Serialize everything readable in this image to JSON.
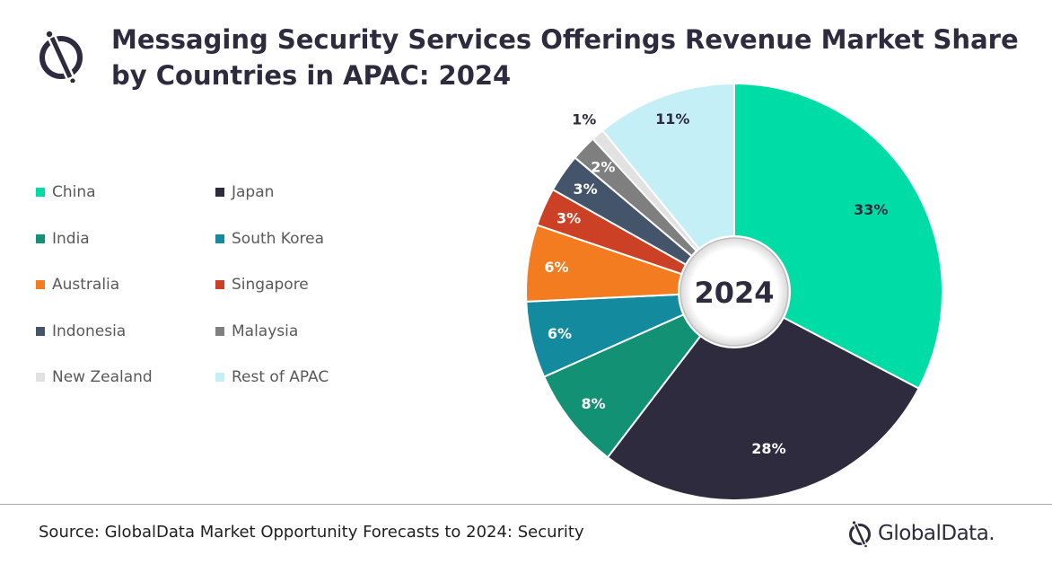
{
  "header": {
    "title": "Messaging Security Services Offerings Revenue Market Share by Countries in APAC: 2024"
  },
  "chart_data": {
    "type": "pie",
    "title": "Messaging Security Services Offerings Revenue Market Share by Countries in APAC: 2024",
    "center_label": "2024",
    "legend_position": "left",
    "slices": [
      {
        "name": "China",
        "value": 33,
        "label": "33%",
        "color": "#00dca5"
      },
      {
        "name": "Japan",
        "value": 28,
        "label": "28%",
        "color": "#2d2b3d"
      },
      {
        "name": "India",
        "value": 8,
        "label": "8%",
        "color": "#139175"
      },
      {
        "name": "South Korea",
        "value": 6,
        "label": "6%",
        "color": "#138a9e"
      },
      {
        "name": "Australia",
        "value": 6,
        "label": "6%",
        "color": "#f37c20"
      },
      {
        "name": "Singapore",
        "value": 3,
        "label": "3%",
        "color": "#cc4125"
      },
      {
        "name": "Indonesia",
        "value": 3,
        "label": "3%",
        "color": "#44546a"
      },
      {
        "name": "Malaysia",
        "value": 2,
        "label": "2%",
        "color": "#7f7f7f"
      },
      {
        "name": "New Zealand",
        "value": 1,
        "label": "1%",
        "color": "#e2e2e2"
      },
      {
        "name": "Rest of APAC",
        "value": 11,
        "label": "11%",
        "color": "#c5eff7"
      }
    ]
  },
  "footer": {
    "source": "Source: GlobalData Market Opportunity Forecasts to 2024: Security",
    "brand": "GlobalData."
  },
  "icons": {
    "header_logo": "globaldata-logo-icon",
    "footer_logo": "globaldata-logo-icon"
  }
}
